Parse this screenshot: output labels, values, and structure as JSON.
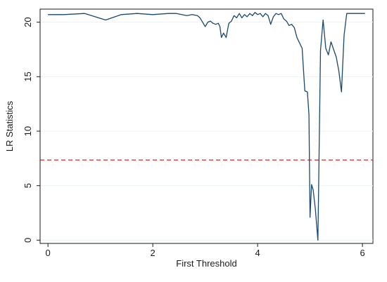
{
  "chart_data": {
    "type": "line",
    "title": "",
    "xlabel": "First Threshold",
    "ylabel": "LR Statistics",
    "xlim": [
      -0.15,
      6.2
    ],
    "ylim": [
      -0.3,
      21.2
    ],
    "xticks": [
      0,
      2,
      4,
      6
    ],
    "yticks": [
      0,
      5,
      10,
      15,
      20
    ],
    "grid": "horizontal",
    "legend": "none",
    "series": [
      {
        "color": "#1a476f",
        "x": [
          0.0,
          0.3,
          0.7,
          1.1,
          1.4,
          1.7,
          2.0,
          2.3,
          2.45,
          2.55,
          2.65,
          2.75,
          2.85,
          2.9,
          2.95,
          3.0,
          3.05,
          3.1,
          3.15,
          3.2,
          3.25,
          3.28,
          3.31,
          3.35,
          3.4,
          3.45,
          3.5,
          3.55,
          3.6,
          3.65,
          3.7,
          3.75,
          3.8,
          3.85,
          3.9,
          3.95,
          4.0,
          4.05,
          4.1,
          4.15,
          4.2,
          4.25,
          4.3,
          4.35,
          4.4,
          4.45,
          4.5,
          4.55,
          4.6,
          4.65,
          4.7,
          4.75,
          4.8,
          4.85,
          4.9,
          4.95,
          4.98,
          5.0,
          5.03,
          5.06,
          5.1,
          5.15,
          5.2,
          5.25,
          5.3,
          5.35,
          5.4,
          5.45,
          5.5,
          5.55,
          5.6,
          5.65,
          5.7,
          5.76,
          5.8,
          5.85,
          5.9,
          5.95,
          6.0,
          6.05
        ],
        "y": [
          20.7,
          20.7,
          20.8,
          20.2,
          20.7,
          20.8,
          20.7,
          20.8,
          20.8,
          20.7,
          20.6,
          20.7,
          20.6,
          20.4,
          20.0,
          19.6,
          20.0,
          20.1,
          19.9,
          19.8,
          19.9,
          19.6,
          18.6,
          19.0,
          18.6,
          19.9,
          20.1,
          20.6,
          20.4,
          20.8,
          20.4,
          20.7,
          20.5,
          20.8,
          20.6,
          20.9,
          20.7,
          20.8,
          20.5,
          20.8,
          20.6,
          19.8,
          20.5,
          20.8,
          20.7,
          20.8,
          20.3,
          20.1,
          19.7,
          19.8,
          19.5,
          18.6,
          18.1,
          17.6,
          13.7,
          13.6,
          11.5,
          2.1,
          5.1,
          4.6,
          2.9,
          0.0,
          17.4,
          20.2,
          17.6,
          17.0,
          18.2,
          17.5,
          16.8,
          15.5,
          13.6,
          18.8,
          20.8,
          20.8,
          20.8,
          20.8,
          20.8,
          20.8,
          20.8,
          20.8
        ]
      }
    ],
    "reference_lines": [
      {
        "axis": "y",
        "value": 7.35,
        "color": "#d62728",
        "style": "dashed"
      }
    ]
  }
}
